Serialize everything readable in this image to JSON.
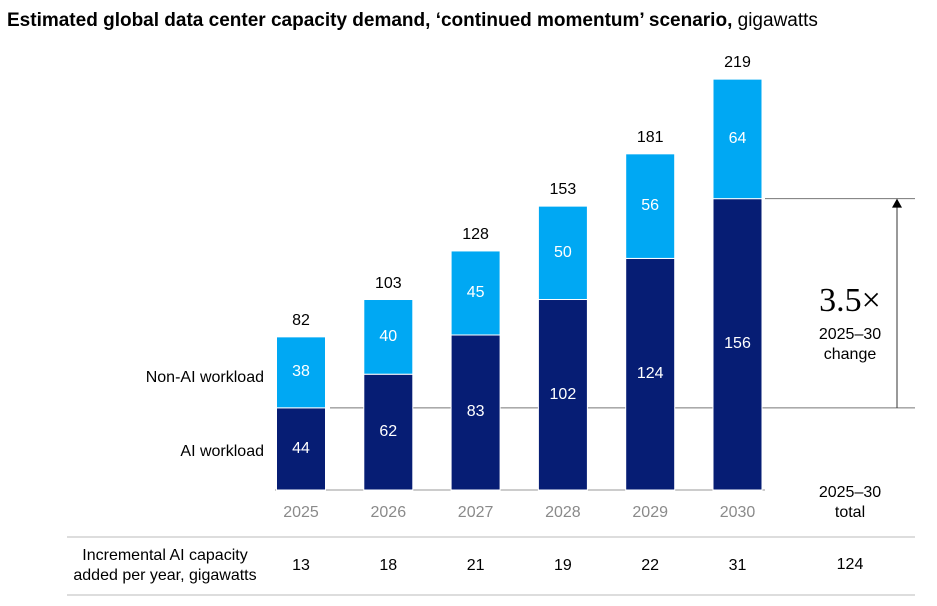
{
  "chart_data": {
    "type": "bar",
    "stacked": true,
    "title": "Estimated global data center capacity demand, ‘continued momentum’ scenario,",
    "title_unit": "gigawatts",
    "categories": [
      "2025",
      "2026",
      "2027",
      "2028",
      "2029",
      "2030"
    ],
    "series": [
      {
        "name": "AI workload",
        "color": "#061d74",
        "values": [
          44,
          62,
          83,
          102,
          124,
          156
        ]
      },
      {
        "name": "Non-AI workload",
        "color": "#00a8f3",
        "values": [
          38,
          40,
          45,
          50,
          56,
          64
        ]
      }
    ],
    "totals": [
      82,
      103,
      128,
      153,
      181,
      219
    ],
    "annotation": {
      "value": "3.5×",
      "label1": "2025–30",
      "label2": "change"
    },
    "ylim": [
      0,
      219
    ],
    "table": {
      "row_label1": "Incremental AI capacity",
      "row_label2": "added per year, gigawatts",
      "values": [
        "13",
        "18",
        "21",
        "19",
        "22",
        "31"
      ],
      "total_header1": "2025–30",
      "total_header2": "total",
      "total": "124"
    }
  }
}
